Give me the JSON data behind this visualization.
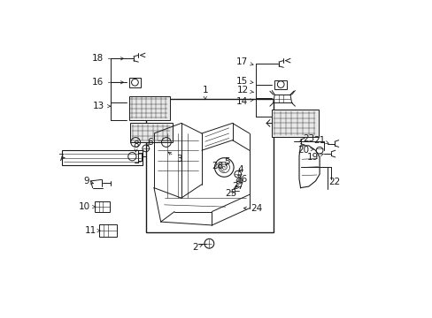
{
  "background_color": "#ffffff",
  "figsize": [
    4.89,
    3.6
  ],
  "dpi": 100,
  "dark": "#1a1a1a",
  "lw": 0.7
}
